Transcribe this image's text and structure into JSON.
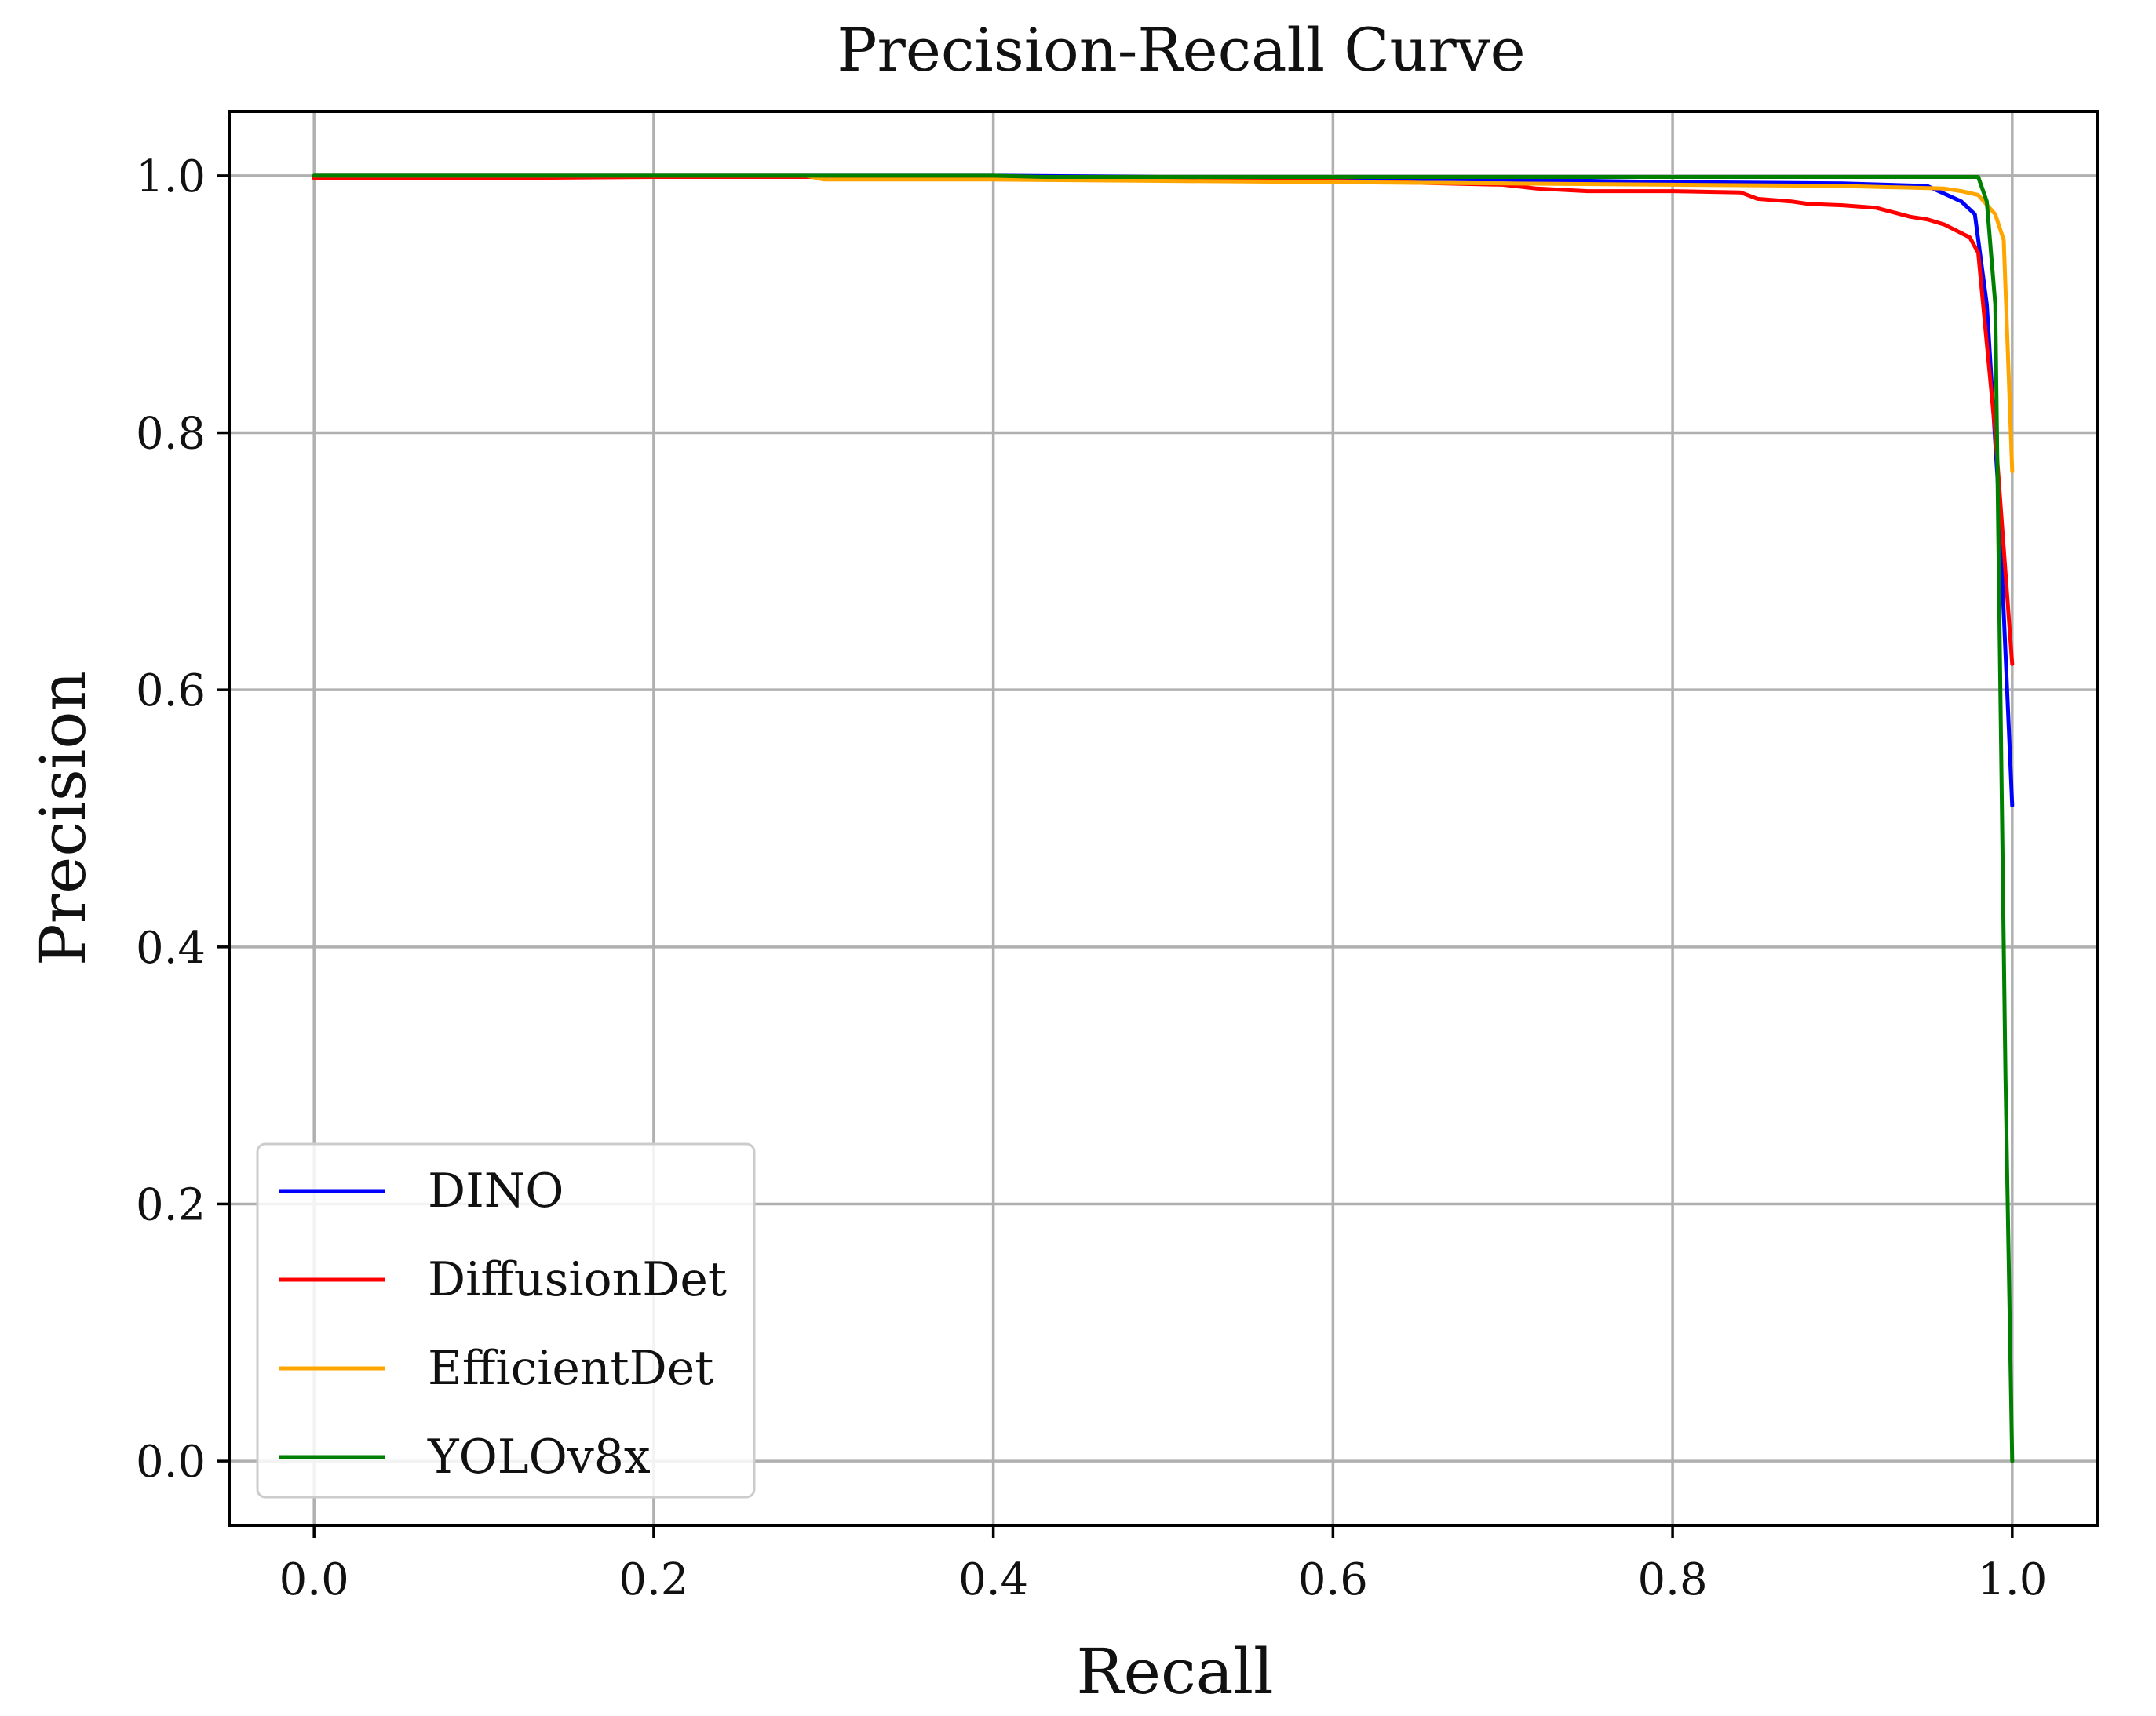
{
  "chart_data": {
    "type": "line",
    "title": "Precision-Recall Curve",
    "xlabel": "Recall",
    "ylabel": "Precision",
    "xlim": [
      -0.05,
      1.05
    ],
    "ylim": [
      -0.05,
      1.05
    ],
    "grid": true,
    "x_ticks": [
      0.0,
      0.2,
      0.4,
      0.6,
      0.8,
      1.0
    ],
    "y_ticks": [
      0.0,
      0.2,
      0.4,
      0.6,
      0.8,
      1.0
    ],
    "x_tick_labels": [
      "0.0",
      "0.2",
      "0.4",
      "0.6",
      "0.8",
      "1.0"
    ],
    "y_tick_labels": [
      "0.0",
      "0.2",
      "0.4",
      "0.6",
      "0.8",
      "1.0"
    ],
    "legend_position": "lower-left",
    "series": [
      {
        "name": "DINO",
        "color": "#0000ff",
        "x": [
          0.0,
          0.2,
          0.4,
          0.6,
          0.7,
          0.8,
          0.9,
          0.95,
          0.97,
          0.978,
          0.985,
          0.992,
          1.0
        ],
        "y": [
          1.0,
          1.0,
          1.0,
          0.998,
          0.997,
          0.995,
          0.994,
          0.992,
          0.98,
          0.97,
          0.9,
          0.75,
          0.51
        ]
      },
      {
        "name": "DiffusionDet",
        "color": "#ff0000",
        "x": [
          0.0,
          0.1,
          0.2,
          0.4,
          0.6,
          0.7,
          0.72,
          0.75,
          0.8,
          0.84,
          0.85,
          0.87,
          0.88,
          0.9,
          0.92,
          0.94,
          0.95,
          0.96,
          0.975,
          0.98,
          0.99,
          1.0
        ],
        "y": [
          0.998,
          0.998,
          0.999,
          0.999,
          0.996,
          0.993,
          0.99,
          0.988,
          0.988,
          0.987,
          0.982,
          0.98,
          0.978,
          0.977,
          0.975,
          0.968,
          0.966,
          0.962,
          0.952,
          0.94,
          0.8,
          0.62
        ]
      },
      {
        "name": "EfficientDet",
        "color": "#ffa500",
        "x": [
          0.0,
          0.29,
          0.3,
          0.4,
          0.5,
          0.6,
          0.7,
          0.8,
          0.9,
          0.96,
          0.97,
          0.98,
          0.99,
          0.995,
          1.0
        ],
        "y": [
          1.0,
          1.0,
          0.997,
          0.997,
          0.996,
          0.995,
          0.994,
          0.993,
          0.992,
          0.99,
          0.988,
          0.985,
          0.97,
          0.95,
          0.77
        ]
      },
      {
        "name": "YOLOv8x",
        "color": "#008000",
        "x": [
          0.0,
          0.2,
          0.4,
          0.43,
          0.6,
          0.8,
          0.9,
          0.98,
          0.985,
          0.99,
          0.993,
          0.996,
          1.0
        ],
        "y": [
          1.0,
          1.0,
          1.0,
          0.999,
          0.999,
          0.999,
          0.999,
          0.999,
          0.98,
          0.9,
          0.6,
          0.3,
          0.0
        ]
      }
    ]
  }
}
